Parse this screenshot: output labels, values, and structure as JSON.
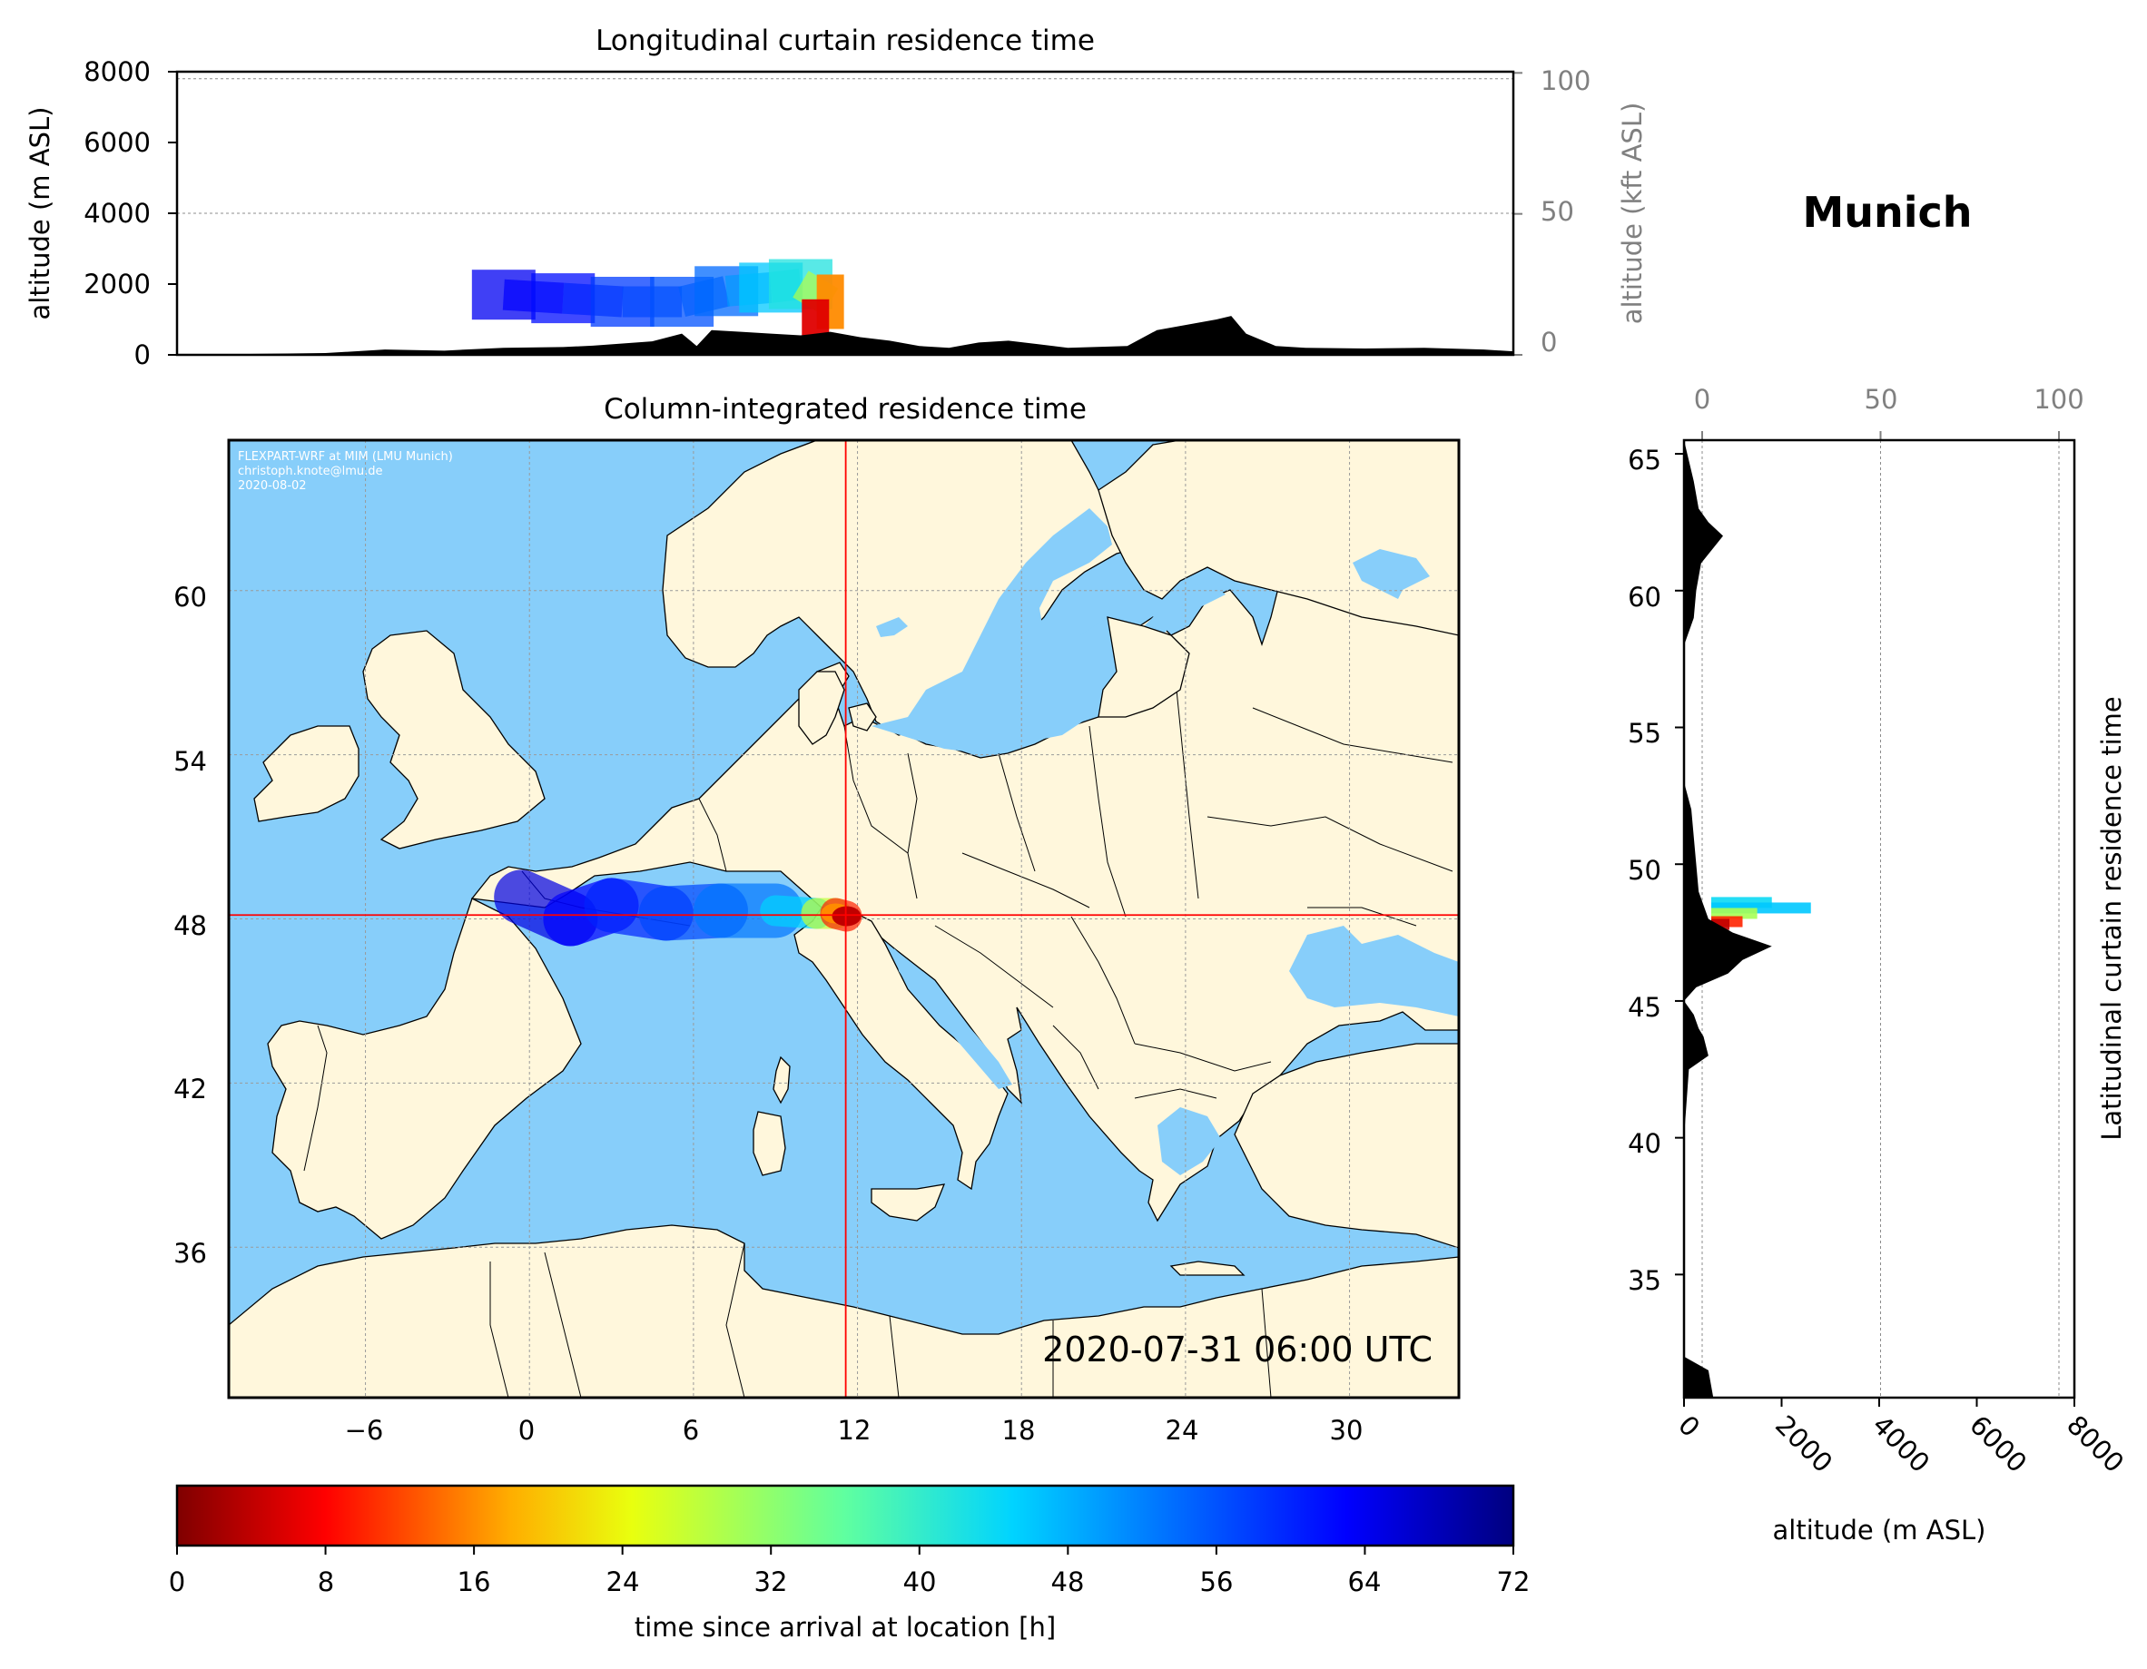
{
  "station": "Munich",
  "timestamp": "2020-07-31 06:00 UTC",
  "credits": [
    "FLEXPART-WRF at MIM (LMU Munich)",
    "christoph.knote@lmu.de",
    "2020-08-02"
  ],
  "colors": {
    "ocean": "#87cefa",
    "land": "#fff7dc",
    "terrain": "#000000",
    "crosshair": "#ff0000",
    "grid": "#9a9a9a"
  },
  "chart_data": [
    {
      "id": "longitudinal",
      "type": "heatmap",
      "title": "Longitudinal curtain residence time",
      "xlabel": "",
      "ylabel": "altitude (m ASL)",
      "ylabel_right": "altitude (kft ASL)",
      "xlim": [
        -10,
        35
      ],
      "ylim": [
        0,
        8000
      ],
      "yticks": [
        "0",
        "2000",
        "4000",
        "6000",
        "8000"
      ],
      "yticks_right": [
        "0",
        "50",
        "100"
      ],
      "grid": true,
      "terrain_profile": {
        "lon": [
          -10,
          -5,
          -3,
          -1,
          1,
          3,
          4,
          5,
          6,
          7,
          7.5,
          8,
          9,
          10,
          11,
          12,
          13,
          14,
          15,
          16,
          17,
          18,
          19,
          20,
          22,
          23,
          24,
          25,
          25.5,
          26,
          27,
          28,
          30,
          32,
          34,
          35
        ],
        "altitude_m": [
          0,
          50,
          150,
          120,
          200,
          220,
          260,
          320,
          380,
          600,
          250,
          700,
          650,
          600,
          550,
          650,
          500,
          400,
          250,
          200,
          350,
          400,
          300,
          200,
          250,
          700,
          850,
          1000,
          1100,
          600,
          250,
          200,
          180,
          200,
          150,
          100
        ]
      },
      "plume": [
        {
          "lon": 1.0,
          "altitude_m": 1700,
          "hours": 64
        },
        {
          "lon": 3.0,
          "altitude_m": 1600,
          "hours": 62
        },
        {
          "lon": 5.0,
          "altitude_m": 1500,
          "hours": 58
        },
        {
          "lon": 7.0,
          "altitude_m": 1500,
          "hours": 56
        },
        {
          "lon": 8.5,
          "altitude_m": 1800,
          "hours": 54
        },
        {
          "lon": 10.0,
          "altitude_m": 1900,
          "hours": 46
        },
        {
          "lon": 11.0,
          "altitude_m": 2000,
          "hours": 42
        },
        {
          "lon": 12.0,
          "altitude_m": 1500,
          "hours": 16
        },
        {
          "lon": 11.5,
          "altitude_m": 800,
          "hours": 6
        }
      ]
    },
    {
      "id": "column",
      "type": "heatmap",
      "title": "Column-integrated residence time",
      "xlim": [
        -11,
        34
      ],
      "ylim": [
        30.5,
        65.5
      ],
      "xticks": [
        "−6",
        "0",
        "6",
        "12",
        "18",
        "24",
        "30"
      ],
      "yticks": [
        "36",
        "42",
        "48",
        "54",
        "60"
      ],
      "grid": true,
      "crosshair": {
        "lon": 11.57,
        "lat": 48.14
      },
      "plume": [
        {
          "lon": -0.3,
          "lat": 48.8,
          "hours": 66
        },
        {
          "lon": 1.5,
          "lat": 48.0,
          "hours": 64
        },
        {
          "lon": 3.0,
          "lat": 48.5,
          "hours": 62
        },
        {
          "lon": 5.0,
          "lat": 48.2,
          "hours": 58
        },
        {
          "lon": 7.0,
          "lat": 48.3,
          "hours": 56
        },
        {
          "lon": 9.0,
          "lat": 48.3,
          "hours": 50
        },
        {
          "lon": 10.5,
          "lat": 48.2,
          "hours": 40
        },
        {
          "lon": 11.2,
          "lat": 48.2,
          "hours": 16
        },
        {
          "lon": 11.6,
          "lat": 48.1,
          "hours": 4
        }
      ]
    },
    {
      "id": "latitudinal",
      "type": "heatmap",
      "title": "Latitudinal curtain residence time",
      "xlabel": "altitude (m ASL)",
      "xlim": [
        0,
        8000
      ],
      "ylim": [
        30.5,
        65.5
      ],
      "xticks": [
        "0",
        "2000",
        "4000",
        "6000",
        "8000"
      ],
      "xticks_top": [
        "0",
        "50",
        "100"
      ],
      "yticks": [
        "35",
        "40",
        "45",
        "50",
        "55",
        "60",
        "65"
      ],
      "grid": true,
      "terrain_profile": {
        "lat": [
          30.5,
          31.5,
          32,
          33,
          36,
          40,
          42.5,
          43,
          43.7,
          44,
          44.5,
          45,
          45.5,
          46,
          46.5,
          47,
          47.5,
          48,
          49,
          50,
          51,
          52,
          53,
          58,
          59,
          60,
          61,
          62,
          62.5,
          63,
          64,
          65.5
        ],
        "altitude_m": [
          600,
          500,
          0,
          0,
          0,
          0,
          100,
          500,
          400,
          300,
          200,
          0,
          250,
          900,
          1200,
          1800,
          1000,
          500,
          300,
          250,
          200,
          150,
          0,
          0,
          200,
          250,
          350,
          800,
          500,
          300,
          200,
          0
        ]
      },
      "plume": [
        {
          "lat": 48.6,
          "altitude_m": 1800,
          "hours": 44
        },
        {
          "lat": 48.4,
          "altitude_m": 2600,
          "hours": 46
        },
        {
          "lat": 48.2,
          "altitude_m": 1500,
          "hours": 30
        },
        {
          "lat": 47.9,
          "altitude_m": 1200,
          "hours": 10
        },
        {
          "lat": 47.8,
          "altitude_m": 900,
          "hours": 4
        }
      ]
    },
    {
      "id": "colorbar",
      "type": "heatmap",
      "xlabel": "time since arrival at location [h]",
      "range": [
        0,
        72
      ],
      "ticks": [
        "0",
        "8",
        "16",
        "24",
        "32",
        "40",
        "48",
        "56",
        "64",
        "72"
      ]
    }
  ]
}
